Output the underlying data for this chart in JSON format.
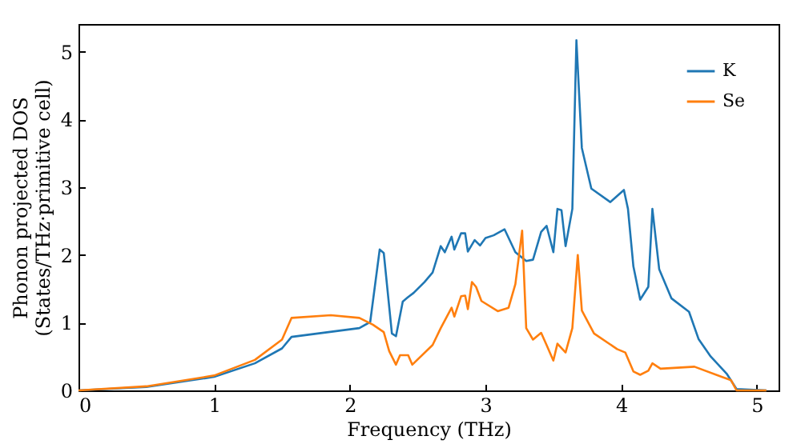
{
  "chart_data": {
    "type": "line",
    "xlabel": "Frequency (THz)",
    "ylabel": "Phonon projected DOS\n(States/THz·primitive cell)",
    "xlim": [
      0,
      5.16
    ],
    "ylim": [
      0,
      5.41
    ],
    "xticks": [
      0,
      1,
      2,
      3,
      4,
      5
    ],
    "yticks": [
      0,
      1,
      2,
      3,
      4,
      5
    ],
    "grid": false,
    "legend": "top right",
    "line_style": "solid",
    "marker": "none",
    "series": [
      {
        "name": "K",
        "color": "#1f77b4",
        "x": [
          0,
          0.5,
          1,
          1.3,
          1.5,
          1.57,
          2.07,
          2.15,
          2.22,
          2.25,
          2.31,
          2.34,
          2.39,
          2.43,
          2.47,
          2.55,
          2.61,
          2.67,
          2.7,
          2.75,
          2.77,
          2.82,
          2.85,
          2.87,
          2.92,
          2.96,
          3.0,
          3.06,
          3.14,
          3.22,
          3.3,
          3.35,
          3.41,
          3.45,
          3.5,
          3.53,
          3.56,
          3.59,
          3.64,
          3.67,
          3.71,
          3.78,
          3.92,
          4.02,
          4.05,
          4.09,
          4.14,
          4.2,
          4.23,
          4.28,
          4.37,
          4.5,
          4.57,
          4.66,
          4.78,
          4.85,
          5.07
        ],
        "values": [
          0,
          0.05,
          0.2,
          0.4,
          0.62,
          0.79,
          0.92,
          1.01,
          2.08,
          2.03,
          0.84,
          0.8,
          1.31,
          1.38,
          1.44,
          1.6,
          1.74,
          2.13,
          2.04,
          2.27,
          2.08,
          2.32,
          2.32,
          2.05,
          2.22,
          2.14,
          2.25,
          2.29,
          2.38,
          2.04,
          1.91,
          1.93,
          2.34,
          2.43,
          2.04,
          2.68,
          2.66,
          2.13,
          2.68,
          5.17,
          3.58,
          2.98,
          2.78,
          2.96,
          2.68,
          1.83,
          1.34,
          1.53,
          2.68,
          1.79,
          1.36,
          1.16,
          0.76,
          0.5,
          0.24,
          0.02,
          0
        ]
      },
      {
        "name": "Se",
        "color": "#ff7f0e",
        "x": [
          0,
          0.5,
          1,
          1.3,
          1.5,
          1.57,
          1.86,
          2.07,
          2.17,
          2.25,
          2.29,
          2.34,
          2.37,
          2.43,
          2.46,
          2.61,
          2.67,
          2.75,
          2.77,
          2.82,
          2.85,
          2.87,
          2.9,
          2.93,
          2.97,
          3.09,
          3.17,
          3.22,
          3.27,
          3.3,
          3.35,
          3.41,
          3.45,
          3.5,
          3.53,
          3.59,
          3.64,
          3.68,
          3.71,
          3.8,
          3.97,
          4.03,
          4.09,
          4.14,
          4.2,
          4.23,
          4.29,
          4.54,
          4.74,
          4.81,
          4.85,
          5.07
        ],
        "values": [
          0,
          0.06,
          0.22,
          0.45,
          0.75,
          1.07,
          1.11,
          1.07,
          0.97,
          0.86,
          0.58,
          0.38,
          0.52,
          0.52,
          0.38,
          0.67,
          0.92,
          1.22,
          1.09,
          1.39,
          1.4,
          1.2,
          1.6,
          1.53,
          1.32,
          1.17,
          1.22,
          1.57,
          2.36,
          0.92,
          0.75,
          0.85,
          0.67,
          0.44,
          0.69,
          0.56,
          0.92,
          2.0,
          1.18,
          0.84,
          0.61,
          0.56,
          0.28,
          0.23,
          0.29,
          0.4,
          0.32,
          0.35,
          0.2,
          0.15,
          0,
          0
        ]
      }
    ]
  }
}
